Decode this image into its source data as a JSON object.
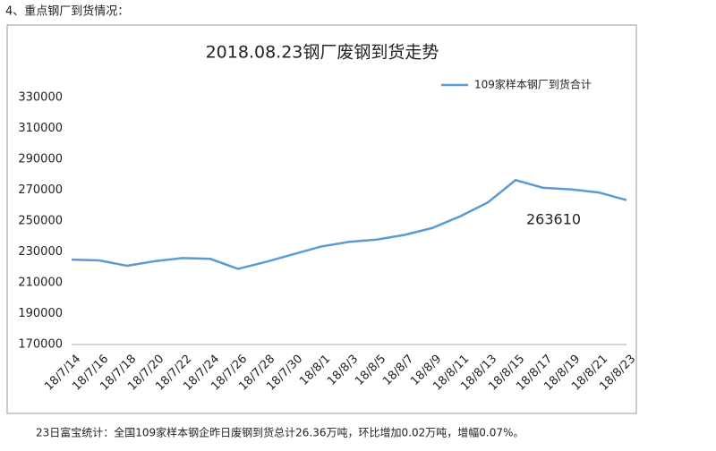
{
  "heading": "4、重点钢厂到货情况：",
  "caption": "23日富宝统计：全国109家样本钢企昨日废钢到货总计26.36万吨，环比增加0.02万吨，增幅0.07%。",
  "chart_data": {
    "type": "line",
    "title": "2018.08.23钢厂废钢到货走势",
    "categories": [
      "18/7/14",
      "18/7/16",
      "18/7/18",
      "18/7/20",
      "18/7/22",
      "18/7/24",
      "18/7/26",
      "18/7/28",
      "18/7/30",
      "18/8/1",
      "18/8/3",
      "18/8/5",
      "18/8/7",
      "18/8/9",
      "18/8/11",
      "18/8/13",
      "18/8/15",
      "18/8/17",
      "18/8/19",
      "18/8/21",
      "18/8/23"
    ],
    "series": [
      {
        "name": "109家样本钢厂到货合计",
        "color": "#5b9bd5",
        "values": [
          225000,
          224500,
          221000,
          224000,
          226000,
          225500,
          219000,
          223500,
          228500,
          233500,
          236500,
          238000,
          241000,
          245500,
          253000,
          262000,
          276500,
          271500,
          270500,
          268500,
          263610
        ]
      }
    ],
    "annotations": [
      "263610"
    ],
    "ylim": [
      170000,
      330000
    ],
    "yticks": [
      170000,
      190000,
      210000,
      230000,
      250000,
      270000,
      290000,
      310000,
      330000
    ],
    "legend": "upper right",
    "grid": false
  }
}
